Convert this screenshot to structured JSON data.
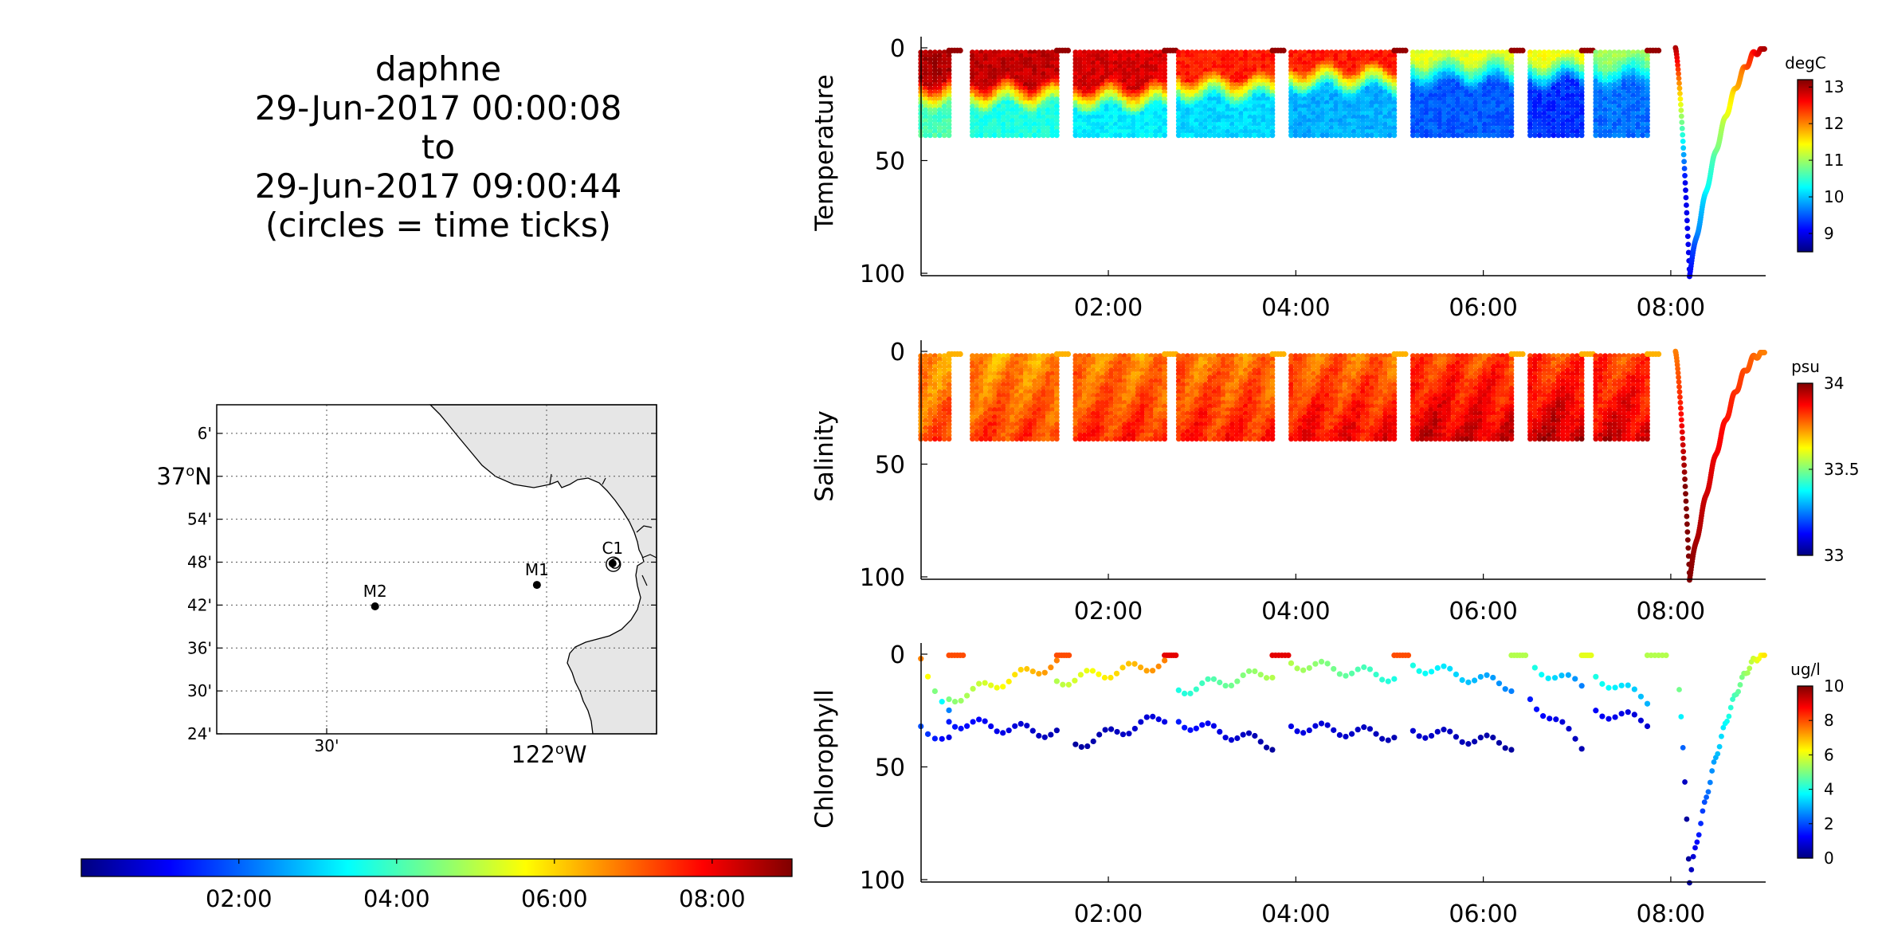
{
  "title": {
    "vehicle": "daphne",
    "start": "29-Jun-2017 00:00:08",
    "to": "to",
    "end": "29-Jun-2017 09:00:44",
    "note": "(circles = time ticks)"
  },
  "colormap": [
    "#00007f",
    "#0000ff",
    "#007fff",
    "#00ffff",
    "#7fff7f",
    "#ffff00",
    "#ff7f00",
    "#ff0000",
    "#7f0000"
  ],
  "map": {
    "lat_range": [
      36.4,
      37.1667
    ],
    "lon_range": [
      -122.75,
      -121.75
    ],
    "lat_labels": [
      {
        "lat": 37.1,
        "text": "6'"
      },
      {
        "lat": 37.0,
        "text": "37",
        "sup": "o",
        "suffix": "N"
      },
      {
        "lat": 36.9,
        "text": "54'"
      },
      {
        "lat": 36.8,
        "text": "48'"
      },
      {
        "lat": 36.7,
        "text": "42'"
      },
      {
        "lat": 36.6,
        "text": "36'"
      },
      {
        "lat": 36.5,
        "text": "30'"
      },
      {
        "lat": 36.4,
        "text": "24'"
      }
    ],
    "lon_labels": [
      {
        "lon": -122.5,
        "text": "30'"
      },
      {
        "lon": -122.0,
        "text": "122",
        "sup": "o",
        "suffix": "W"
      }
    ],
    "stations": [
      {
        "name": "M2",
        "lat": 36.697,
        "lon": -122.39
      },
      {
        "name": "M1",
        "lat": 36.747,
        "lon": -122.022
      },
      {
        "name": "C1",
        "lat": 36.797,
        "lon": -121.85
      }
    ],
    "land_color": "#e6e6e6"
  },
  "time_colorbar": {
    "range_hours": [
      0.0022,
      9.0122
    ],
    "ticks": [
      {
        "hour": 2,
        "label": "02:00"
      },
      {
        "hour": 4,
        "label": "04:00"
      },
      {
        "hour": 6,
        "label": "06:00"
      },
      {
        "hour": 8,
        "label": "08:00"
      }
    ]
  },
  "chart_data": [
    {
      "type": "scatter",
      "ylabel": "Temperature",
      "xlabel": "",
      "xlim_hours": [
        0.0022,
        9.0122
      ],
      "ylim": [
        0,
        100
      ],
      "y_reversed": true,
      "xticks": [
        "02:00",
        "04:00",
        "06:00",
        "08:00"
      ],
      "yticks": [
        0,
        50,
        100
      ],
      "colorbar": {
        "label": "degC",
        "range": [
          8.5,
          13.2
        ],
        "ticks": [
          9,
          10,
          11,
          12,
          13
        ]
      },
      "profiles": [
        {
          "t0": 0.0,
          "t1": 0.3,
          "max_depth": 40,
          "surface": 13.0,
          "deep": 10.6,
          "thermocline": 14
        },
        {
          "t0": 0.55,
          "t1": 1.45,
          "max_depth": 40,
          "surface": 12.9,
          "deep": 10.4,
          "thermocline": 15
        },
        {
          "t0": 1.65,
          "t1": 2.6,
          "max_depth": 40,
          "surface": 12.8,
          "deep": 10.2,
          "thermocline": 16
        },
        {
          "t0": 2.75,
          "t1": 3.75,
          "max_depth": 40,
          "surface": 12.5,
          "deep": 10.1,
          "thermocline": 12
        },
        {
          "t0": 3.95,
          "t1": 5.05,
          "max_depth": 40,
          "surface": 12.5,
          "deep": 9.9,
          "thermocline": 8
        },
        {
          "t0": 5.25,
          "t1": 6.3,
          "max_depth": 40,
          "surface": 11.3,
          "deep": 9.5,
          "thermocline": 5
        },
        {
          "t0": 6.5,
          "t1": 7.05,
          "max_depth": 40,
          "surface": 11.4,
          "deep": 9.3,
          "thermocline": 5
        },
        {
          "t0": 7.2,
          "t1": 7.75,
          "max_depth": 40,
          "surface": 11.0,
          "deep": 9.6,
          "thermocline": 5
        }
      ],
      "dive": {
        "t_start": 8.05,
        "t_bottom": 8.2,
        "t_end": 9.0,
        "max_depth": 100,
        "surface": 13.0,
        "deep": 9.0
      }
    },
    {
      "type": "scatter",
      "ylabel": "Salinity",
      "xlabel": "",
      "xlim_hours": [
        0.0022,
        9.0122
      ],
      "ylim": [
        0,
        100
      ],
      "y_reversed": true,
      "xticks": [
        "02:00",
        "04:00",
        "06:00",
        "08:00"
      ],
      "yticks": [
        0,
        50,
        100
      ],
      "colorbar": {
        "label": "psu",
        "range": [
          33,
          34
        ],
        "ticks": [
          33,
          33.5,
          34
        ]
      },
      "profiles": [
        {
          "t0": 0.0,
          "t1": 0.3,
          "max_depth": 40,
          "surface": 33.72,
          "deep": 33.8
        },
        {
          "t0": 0.55,
          "t1": 1.45,
          "max_depth": 40,
          "surface": 33.72,
          "deep": 33.82
        },
        {
          "t0": 1.65,
          "t1": 2.6,
          "max_depth": 40,
          "surface": 33.74,
          "deep": 33.84
        },
        {
          "t0": 2.75,
          "t1": 3.75,
          "max_depth": 40,
          "surface": 33.75,
          "deep": 33.85
        },
        {
          "t0": 3.95,
          "t1": 5.05,
          "max_depth": 40,
          "surface": 33.76,
          "deep": 33.88
        },
        {
          "t0": 5.25,
          "t1": 6.3,
          "max_depth": 40,
          "surface": 33.8,
          "deep": 33.92
        },
        {
          "t0": 6.5,
          "t1": 7.05,
          "max_depth": 40,
          "surface": 33.8,
          "deep": 33.94
        },
        {
          "t0": 7.2,
          "t1": 7.75,
          "max_depth": 40,
          "surface": 33.8,
          "deep": 33.92
        }
      ],
      "dive": {
        "t_start": 8.05,
        "t_bottom": 8.2,
        "t_end": 9.0,
        "max_depth": 100,
        "surface": 33.75,
        "deep": 34.0
      }
    },
    {
      "type": "scatter",
      "ylabel": "Chlorophyll",
      "xlabel": "",
      "xlim_hours": [
        0.0022,
        9.0122
      ],
      "ylim": [
        0,
        100
      ],
      "y_reversed": true,
      "xticks": [
        "02:00",
        "04:00",
        "06:00",
        "08:00"
      ],
      "yticks": [
        0,
        50,
        100
      ],
      "colorbar": {
        "label": "ug/l",
        "range": [
          0,
          10
        ],
        "ticks": [
          0,
          2,
          4,
          6,
          8,
          10
        ]
      },
      "surface_segments": [
        {
          "t0": 0.3,
          "t1": 0.45,
          "value": 8
        },
        {
          "t0": 1.45,
          "t1": 1.58,
          "value": 8
        },
        {
          "t0": 2.6,
          "t1": 2.72,
          "value": 9
        },
        {
          "t0": 3.75,
          "t1": 3.92,
          "value": 9
        },
        {
          "t0": 5.05,
          "t1": 5.2,
          "value": 8
        },
        {
          "t0": 6.3,
          "t1": 6.45,
          "value": 5.5
        },
        {
          "t0": 7.05,
          "t1": 7.15,
          "value": 6
        },
        {
          "t0": 7.75,
          "t1": 7.95,
          "value": 5.5
        }
      ],
      "upper_tracks": [
        {
          "t0": 0.0,
          "t1": 0.3,
          "d0": 2,
          "d1": 26,
          "c0": 7.5,
          "c1": 2.5
        },
        {
          "t0": 0.3,
          "t1": 1.45,
          "d0": 20,
          "d1": 4,
          "c0": 5.0,
          "c1": 7.5
        },
        {
          "t0": 1.45,
          "t1": 2.6,
          "d0": 12,
          "d1": 4,
          "c0": 5.5,
          "c1": 7.5
        },
        {
          "t0": 2.75,
          "t1": 3.75,
          "d0": 16,
          "d1": 8,
          "c0": 4.0,
          "c1": 5.5
        },
        {
          "t0": 3.95,
          "t1": 5.05,
          "d0": 4,
          "d1": 10,
          "c0": 5.5,
          "c1": 4.0
        },
        {
          "t0": 5.25,
          "t1": 6.3,
          "d0": 5,
          "d1": 14,
          "c0": 4.0,
          "c1": 2.5
        },
        {
          "t0": 6.55,
          "t1": 7.05,
          "d0": 6,
          "d1": 14,
          "c0": 4.0,
          "c1": 2.5
        },
        {
          "t0": 7.2,
          "t1": 7.75,
          "d0": 10,
          "d1": 20,
          "c0": 4.0,
          "c1": 3.0
        }
      ],
      "lower_tracks": [
        {
          "t0": 0.0,
          "t1": 0.3,
          "d0": 32,
          "d1": 38,
          "c0": 2.0,
          "c1": 1.0
        },
        {
          "t0": 0.3,
          "t1": 1.45,
          "d0": 30,
          "d1": 35,
          "c0": 1.5,
          "c1": 0.5
        },
        {
          "t0": 1.65,
          "t1": 2.6,
          "d0": 40,
          "d1": 28,
          "c0": 0.3,
          "c1": 1.0
        },
        {
          "t0": 2.75,
          "t1": 3.75,
          "d0": 30,
          "d1": 40,
          "c0": 1.5,
          "c1": 0.3
        },
        {
          "t0": 3.95,
          "t1": 5.05,
          "d0": 32,
          "d1": 36,
          "c0": 1.0,
          "c1": 0.5
        },
        {
          "t0": 5.25,
          "t1": 6.3,
          "d0": 34,
          "d1": 40,
          "c0": 0.8,
          "c1": 0.3
        },
        {
          "t0": 6.5,
          "t1": 7.05,
          "d0": 20,
          "d1": 40,
          "c0": 1.5,
          "c1": 0.5
        },
        {
          "t0": 7.2,
          "t1": 7.75,
          "d0": 25,
          "d1": 30,
          "c0": 1.2,
          "c1": 0.8
        }
      ],
      "dive": {
        "t_start": 8.05,
        "t_bottom": 8.2,
        "t_end": 9.0,
        "max_depth": 100,
        "surface": 6.5,
        "deep": 0.3
      }
    }
  ]
}
